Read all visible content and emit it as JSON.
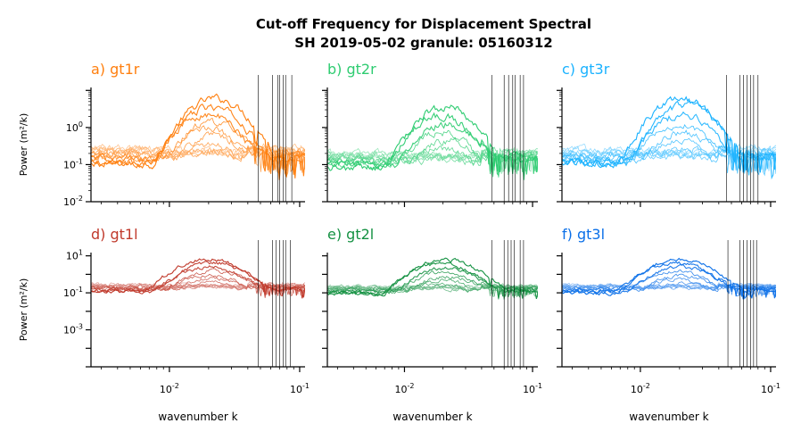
{
  "figure": {
    "title_line1": "Cut-off Frequency for Displacement Spectral",
    "title_line2": "SH 2019-05-02 granule: 05160312",
    "shared_xlabel": "wavenumber k",
    "shared_ylabel": "Power (m²/k)"
  },
  "chart_data": [
    {
      "type": "line",
      "panel": "a",
      "title": "a) gt1r",
      "color": "#ff7f0e",
      "xscale": "log",
      "yscale": "log",
      "xlim": [
        0.0025,
        0.11
      ],
      "ylim": [
        0.01,
        12
      ],
      "yticks": [
        {
          "v": 1,
          "label": "10^0"
        },
        {
          "v": 0.1,
          "label": "10^-1"
        },
        {
          "v": 0.01,
          "label": "10^-2"
        }
      ],
      "xticks": [],
      "ylabel": "Power (m²/k)",
      "xlabel": "",
      "peak_k": 0.021,
      "peak_levels": [
        6.0,
        3.5,
        2.2,
        1.4,
        0.9,
        0.55,
        0.32,
        0.2,
        0.12,
        0.08,
        0.05,
        0.035
      ],
      "cutoffs": [
        0.048,
        0.062,
        0.068,
        0.07,
        0.075,
        0.078,
        0.087
      ],
      "num_series": 12
    },
    {
      "type": "line",
      "panel": "b",
      "title": "b) gt2r",
      "color": "#2ecc71",
      "xscale": "log",
      "yscale": "log",
      "xlim": [
        0.0025,
        0.11
      ],
      "ylim": [
        0.01,
        12
      ],
      "yticks": [],
      "xticks": [],
      "ylabel": "",
      "xlabel": "",
      "peak_k": 0.02,
      "peak_levels": [
        3.5,
        2.0,
        1.2,
        0.7,
        0.4,
        0.24,
        0.15,
        0.1,
        0.07,
        0.05,
        0.035,
        0.025
      ],
      "cutoffs": [
        0.048,
        0.06,
        0.065,
        0.07,
        0.073,
        0.08,
        0.085
      ],
      "num_series": 12
    },
    {
      "type": "line",
      "panel": "c",
      "title": "c) gt3r",
      "color": "#1ab2ff",
      "xscale": "log",
      "yscale": "log",
      "xlim": [
        0.0025,
        0.11
      ],
      "ylim": [
        0.01,
        12
      ],
      "yticks": [],
      "xticks": [],
      "ylabel": "",
      "xlabel": "",
      "peak_k": 0.021,
      "peak_levels": [
        6.0,
        3.8,
        2.2,
        1.2,
        0.7,
        0.4,
        0.25,
        0.15,
        0.1,
        0.07,
        0.05,
        0.035
      ],
      "cutoffs": [
        0.046,
        0.058,
        0.062,
        0.066,
        0.07,
        0.074,
        0.08
      ],
      "num_series": 12
    },
    {
      "type": "line",
      "panel": "d",
      "title": "d) gt1l",
      "color": "#c0392b",
      "xscale": "log",
      "yscale": "log",
      "xlim": [
        0.0025,
        0.11
      ],
      "ylim": [
        1e-05,
        15
      ],
      "yticks": [
        {
          "v": 10,
          "label": "10^1"
        },
        {
          "v": 0.1,
          "label": "10^-1"
        },
        {
          "v": 0.001,
          "label": "10^-3"
        }
      ],
      "xticks": [
        {
          "v": 0.01,
          "label": "10^-2"
        },
        {
          "v": 0.1,
          "label": "10^-1"
        }
      ],
      "ylabel": "Power (m²/k)",
      "xlabel": "wavenumber k",
      "peak_k": 0.021,
      "peak_levels": [
        6.5,
        4.0,
        2.4,
        1.5,
        0.9,
        0.55,
        0.35,
        0.22,
        0.15,
        0.1,
        0.07,
        0.05
      ],
      "cutoffs": [
        0.048,
        0.062,
        0.066,
        0.07,
        0.075,
        0.078,
        0.085
      ],
      "num_series": 12
    },
    {
      "type": "line",
      "panel": "e",
      "title": "e) gt2l",
      "color": "#149142",
      "xscale": "log",
      "yscale": "log",
      "xlim": [
        0.0025,
        0.11
      ],
      "ylim": [
        1e-05,
        15
      ],
      "yticks": [],
      "xticks": [
        {
          "v": 0.01,
          "label": "10^-2"
        },
        {
          "v": 0.1,
          "label": "10^-1"
        }
      ],
      "ylabel": "",
      "xlabel": "wavenumber k",
      "peak_k": 0.02,
      "peak_levels": [
        6.0,
        3.5,
        2.0,
        1.2,
        0.7,
        0.45,
        0.3,
        0.2,
        0.14,
        0.1,
        0.07,
        0.05
      ],
      "cutoffs": [
        0.048,
        0.06,
        0.064,
        0.068,
        0.072,
        0.08,
        0.085
      ],
      "num_series": 12
    },
    {
      "type": "line",
      "panel": "f",
      "title": "f) gt3l",
      "color": "#0a6fe8",
      "xscale": "log",
      "yscale": "log",
      "xlim": [
        0.0025,
        0.11
      ],
      "ylim": [
        1e-05,
        15
      ],
      "yticks": [],
      "xticks": [
        {
          "v": 0.01,
          "label": "10^-2"
        },
        {
          "v": 0.1,
          "label": "10^-1"
        }
      ],
      "ylabel": "",
      "xlabel": "wavenumber k",
      "peak_k": 0.02,
      "peak_levels": [
        6.5,
        4.0,
        2.4,
        1.4,
        0.8,
        0.5,
        0.3,
        0.2,
        0.14,
        0.1,
        0.07,
        0.05
      ],
      "cutoffs": [
        0.047,
        0.058,
        0.062,
        0.066,
        0.07,
        0.074,
        0.078
      ],
      "num_series": 12
    }
  ]
}
